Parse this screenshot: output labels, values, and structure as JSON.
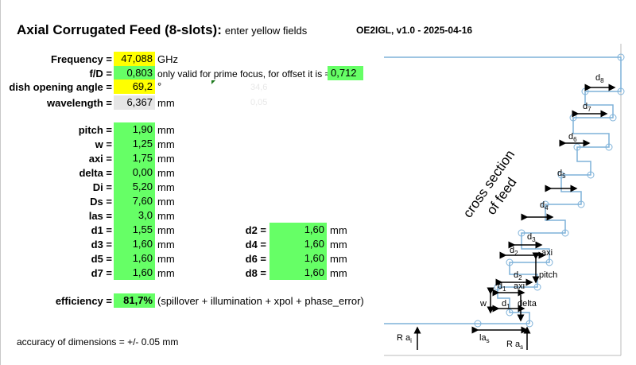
{
  "header": {
    "title": "Axial Corrugated Feed (8-slots):",
    "title_note": "enter yellow fields",
    "version": "OE2IGL, v1.0 - 2025-04-16"
  },
  "inputs": {
    "frequency": {
      "label": "Frequency =",
      "value": "47,088",
      "unit": "GHz"
    },
    "fd": {
      "label": "f/D =",
      "value": "0,803",
      "note": "only valid for prime focus, for offset it is ≈ ~",
      "offset_value": "0,712"
    },
    "angle": {
      "label": "dish opening angle =",
      "value": "69,2",
      "unit": "°",
      "ghost": "34,6"
    },
    "wavelength": {
      "label": "wavelength =",
      "value": "6,367",
      "unit": "mm",
      "ghost": "0,05"
    }
  },
  "dims_left": [
    {
      "label": "pitch =",
      "value": "1,90",
      "unit": "mm"
    },
    {
      "label": "w =",
      "value": "1,25",
      "unit": "mm"
    },
    {
      "label": "axi =",
      "value": "1,75",
      "unit": "mm"
    },
    {
      "label": "delta =",
      "value": "0,00",
      "unit": "mm"
    },
    {
      "label": "Di =",
      "value": "5,20",
      "unit": "mm"
    },
    {
      "label": "Ds =",
      "value": "7,60",
      "unit": "mm"
    },
    {
      "label": "las =",
      "value": "3,0",
      "unit": "mm"
    },
    {
      "label": "d1 =",
      "value": "1,55",
      "unit": "mm"
    },
    {
      "label": "d3 =",
      "value": "1,60",
      "unit": "mm"
    },
    {
      "label": "d5 =",
      "value": "1,60",
      "unit": "mm"
    },
    {
      "label": "d7 =",
      "value": "1,60",
      "unit": "mm"
    }
  ],
  "dims_right": [
    {
      "label": "d2 =",
      "value": "1,60",
      "unit": "mm"
    },
    {
      "label": "d4 =",
      "value": "1,60",
      "unit": "mm"
    },
    {
      "label": "d6 =",
      "value": "1,60",
      "unit": "mm"
    },
    {
      "label": "d8 =",
      "value": "1,60",
      "unit": "mm"
    }
  ],
  "efficiency": {
    "label": "efficiency =",
    "value": "81,7%",
    "note": "(spillover + illumination + xpol + phase_error)"
  },
  "footer": {
    "accuracy": "accuracy of dimensions = +/- 0.05 mm"
  },
  "diagram": {
    "caption_line1": "cross section",
    "caption_line2": "of feed",
    "labels": {
      "d8": "d",
      "d8_sub": "8",
      "d7": "d",
      "d7_sub": "7",
      "d6": "d",
      "d6_sub": "6",
      "d5": "d",
      "d5_sub": "5",
      "d4": "d",
      "d4_sub": "4",
      "d3": "d",
      "d3_sub": "3",
      "d2a": "d",
      "d2a_sub": "2",
      "d2b": "d",
      "d2b_sub": "2",
      "d1a": "d",
      "d1a_sub": "1",
      "d1b": "d",
      "d1b_sub": "1",
      "axi_a": "axi",
      "axi_b": "axi",
      "pitch": "pitch",
      "w": "w",
      "delta": "delta",
      "rai": "R a",
      "rai_sub": "i",
      "las": "la",
      "las_sub": "s",
      "ras": "R a",
      "ras_sub": "s"
    },
    "colors": {
      "line": "#7fb2d9",
      "arrow": "#000000"
    }
  }
}
